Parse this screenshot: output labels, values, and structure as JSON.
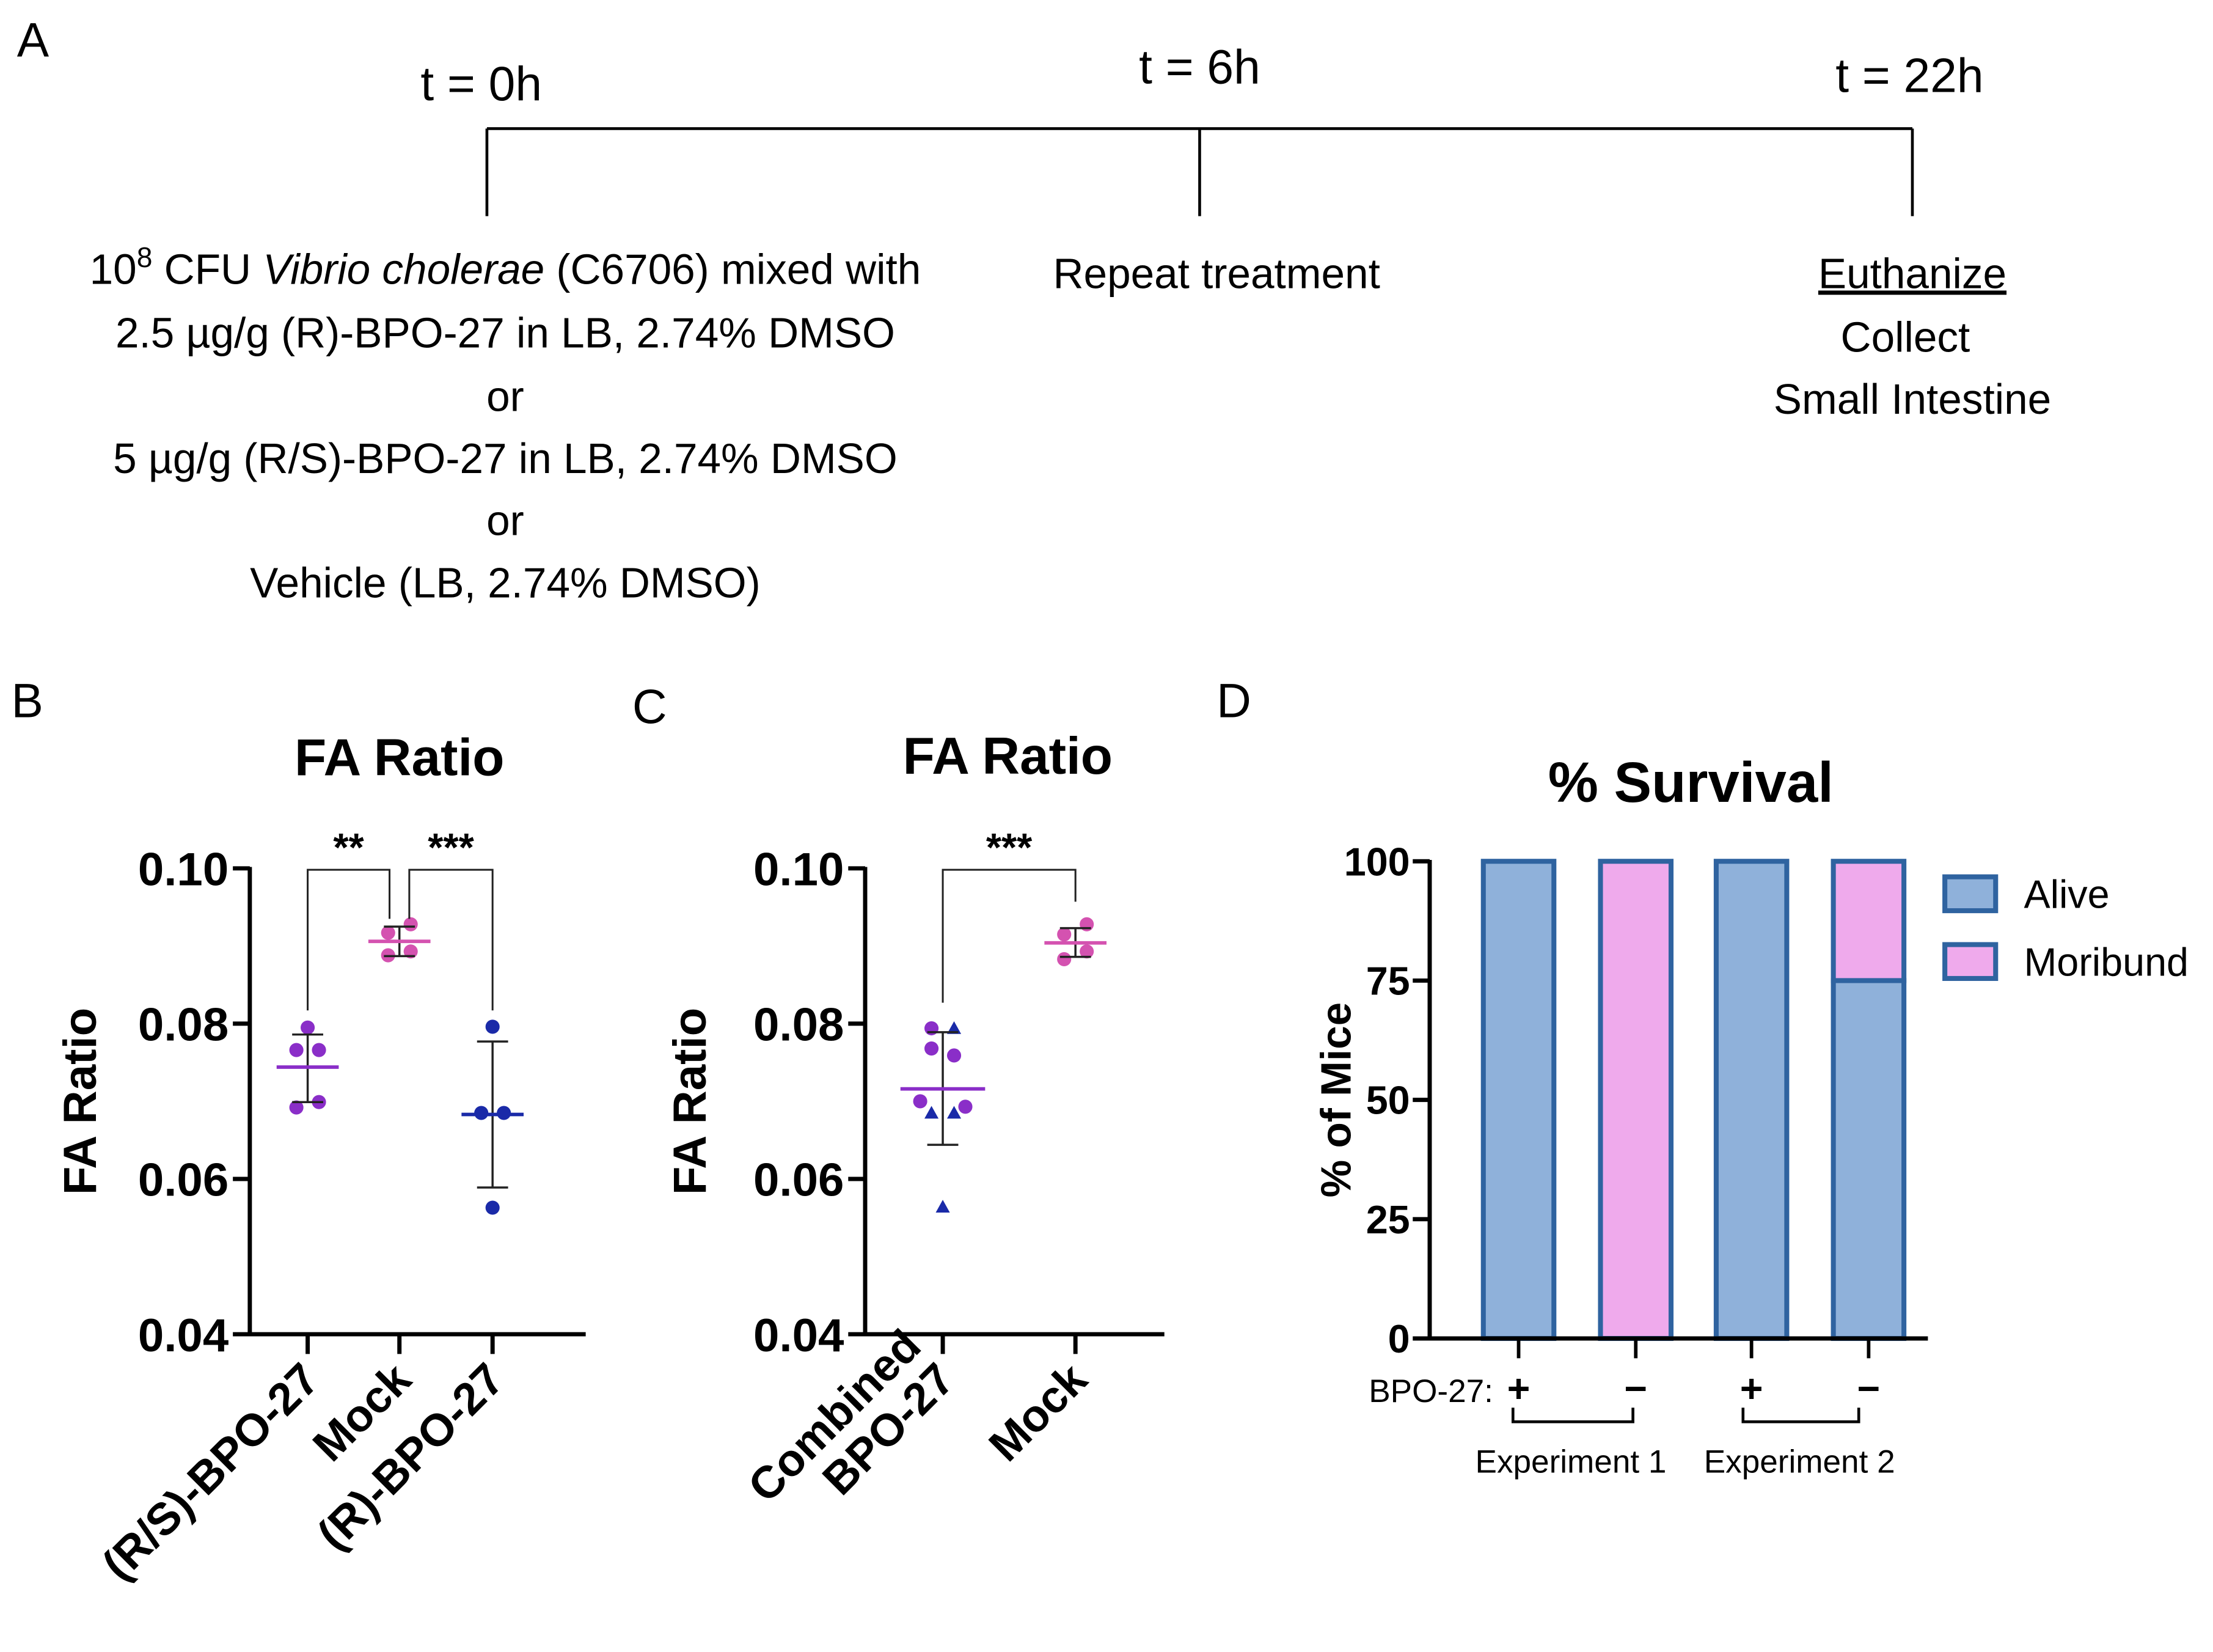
{
  "panel_a": {
    "label": "A",
    "timepoints": [
      "t = 0h",
      "t = 6h",
      "t = 22h"
    ],
    "left_lines": {
      "line1_pre": "10",
      "line1_sup": "8",
      "line1_mid": " CFU ",
      "line1_italic": "Vibrio cholerae",
      "line1_post": " (C6706) mixed with",
      "line2": "2.5 µg/g (R)-BPO-27 in LB, 2.74% DMSO",
      "line3": "or",
      "line4": "5 µg/g (R/S)-BPO-27 in LB, 2.74% DMSO",
      "line5": "or",
      "line6": "Vehicle (LB, 2.74% DMSO)"
    },
    "middle_text": "Repeat treatment",
    "right_lines": [
      "Euthanize",
      "Collect",
      "Small Intestine"
    ]
  },
  "chart_data": [
    {
      "panel": "B",
      "type": "scatter",
      "title": "FA Ratio",
      "ylabel": "FA Ratio",
      "ylim": [
        0.04,
        0.1
      ],
      "yticks": [
        "0.04",
        "0.06",
        "0.08",
        "0.10"
      ],
      "yticks_values": [
        0.04,
        0.06,
        0.08,
        0.1
      ],
      "categories": [
        "(R/S)-BPO-27",
        "Mock",
        "(R)-BPO-27"
      ],
      "groups": [
        {
          "name": "(R/S)-BPO-27",
          "color": "#8a2ec8",
          "points": [
            0.0795,
            0.0766,
            0.0766,
            0.0699,
            0.0692
          ],
          "offsets": [
            0,
            -1,
            1,
            1,
            -1
          ],
          "mean": 0.0744,
          "sd": [
            0.0699,
            0.0786
          ]
        },
        {
          "name": "Mock",
          "color": "#d452b0",
          "points": [
            0.0928,
            0.0917,
            0.0893,
            0.0888
          ],
          "offsets": [
            1,
            -1,
            1,
            -1
          ],
          "mean": 0.0906,
          "sd": [
            0.0887,
            0.0925
          ]
        },
        {
          "name": "(R)-BPO-27",
          "color": "#1a2aa8",
          "points": [
            0.0796,
            0.0685,
            0.0685,
            0.0563
          ],
          "offsets": [
            0,
            -1,
            1,
            0
          ],
          "mean": 0.0683,
          "sd": [
            0.0589,
            0.0777
          ]
        }
      ],
      "significance": [
        {
          "from": 0,
          "to": 1,
          "label": "**"
        },
        {
          "from": 1,
          "to": 2,
          "label": "***"
        }
      ]
    },
    {
      "panel": "C",
      "type": "scatter",
      "title": "FA Ratio",
      "ylabel": "FA Ratio",
      "ylim": [
        0.04,
        0.1
      ],
      "yticks": [
        "0.04",
        "0.06",
        "0.08",
        "0.10"
      ],
      "yticks_values": [
        0.04,
        0.06,
        0.08,
        0.1
      ],
      "categories": [
        "Combined BPO-27",
        "Mock"
      ],
      "category_lines": [
        [
          "Combined",
          "BPO-27"
        ],
        [
          "Mock"
        ]
      ],
      "groups": [
        {
          "name": "Combined BPO-27",
          "mean": 0.0716,
          "sd": [
            0.0644,
            0.0789
          ],
          "color": "#8a2ec8",
          "circles": {
            "color": "#8a2ec8",
            "points": [
              0.0794,
              0.0768,
              0.07,
              0.0693
            ],
            "offsets": [
              -1,
              -1,
              -2,
              2
            ]
          },
          "triangles": {
            "color": "#1a2aa8",
            "points": [
              0.0794,
              0.0685,
              0.0685,
              0.0564
            ],
            "offsets": [
              1,
              -1,
              1,
              0
            ]
          },
          "extra_circle": {
            "value": 0.0759,
            "offset": 1
          }
        },
        {
          "name": "Mock",
          "color": "#d452b0",
          "points": [
            0.0928,
            0.0915,
            0.0893,
            0.0883
          ],
          "offsets": [
            1,
            -1,
            1,
            -1
          ],
          "mean": 0.0904,
          "sd": [
            0.0886,
            0.0923
          ]
        }
      ],
      "significance": [
        {
          "from": 0,
          "to": 1,
          "label": "***"
        }
      ]
    },
    {
      "panel": "D",
      "type": "bar",
      "stacked": true,
      "title": "% Survival",
      "ylabel": "% of Mice",
      "ylim": [
        0,
        100
      ],
      "yticks": [
        "0",
        "25",
        "50",
        "75",
        "100"
      ],
      "yticks_values": [
        0,
        25,
        50,
        75,
        100
      ],
      "categories": [
        "+",
        "−",
        "+",
        "−"
      ],
      "category_prefix": "BPO-27:",
      "series": [
        {
          "name": "Alive",
          "color": "#8fb1da",
          "values": [
            100,
            0,
            100,
            75
          ]
        },
        {
          "name": "Moribund",
          "color": "#efaaec",
          "values": [
            0,
            100,
            0,
            25
          ]
        }
      ],
      "border_color": "#2f63a0",
      "groups": [
        "Experiment 1",
        "Experiment 2"
      ],
      "legend": "right"
    }
  ],
  "panel_labels": {
    "b": "B",
    "c": "C",
    "d": "D"
  }
}
